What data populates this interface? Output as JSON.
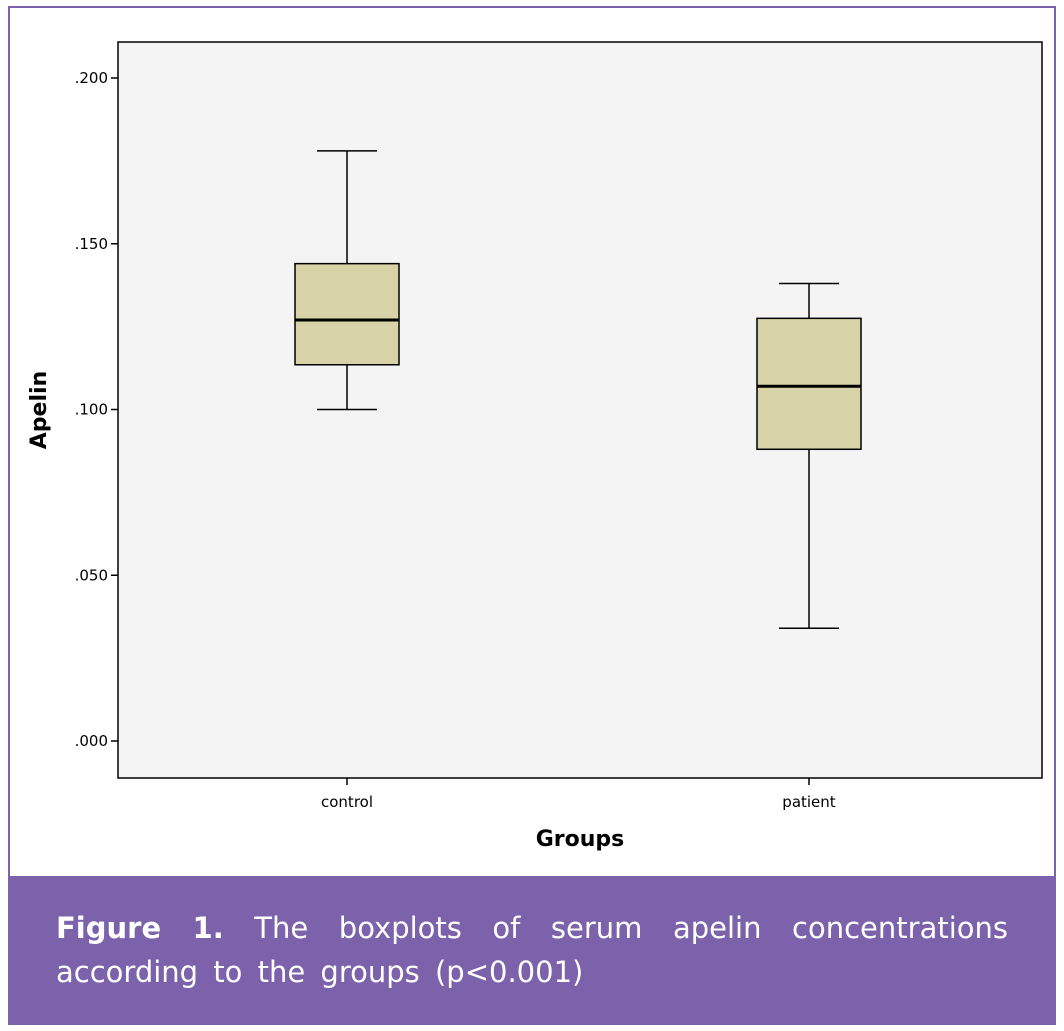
{
  "caption": {
    "label": "Figure 1.",
    "text": "The boxplots of serum apelin concentrations according to the groups (p<0.001)"
  },
  "colors": {
    "frame": "#7b62ab",
    "caption_band": "#7b62ab",
    "plot_background": "#f4f4f4",
    "box_fill": "#d8d3a6",
    "line": "#000000"
  },
  "chart_data": {
    "type": "boxplot",
    "title": "",
    "xlabel": "Groups",
    "ylabel": "Apelin",
    "ylim": [
      0,
      0.21
    ],
    "yticks": [
      {
        "value": 0.0,
        "label": ".000"
      },
      {
        "value": 0.05,
        "label": ".050"
      },
      {
        "value": 0.1,
        "label": ".100"
      },
      {
        "value": 0.15,
        "label": ".150"
      },
      {
        "value": 0.2,
        "label": ".200"
      }
    ],
    "grid": false,
    "categories": [
      "control",
      "patient"
    ],
    "boxes": [
      {
        "category": "control",
        "min": 0.1,
        "q1": 0.1135,
        "median": 0.127,
        "q3": 0.144,
        "max": 0.178
      },
      {
        "category": "patient",
        "min": 0.034,
        "q1": 0.088,
        "median": 0.107,
        "q3": 0.1275,
        "max": 0.138
      }
    ]
  }
}
